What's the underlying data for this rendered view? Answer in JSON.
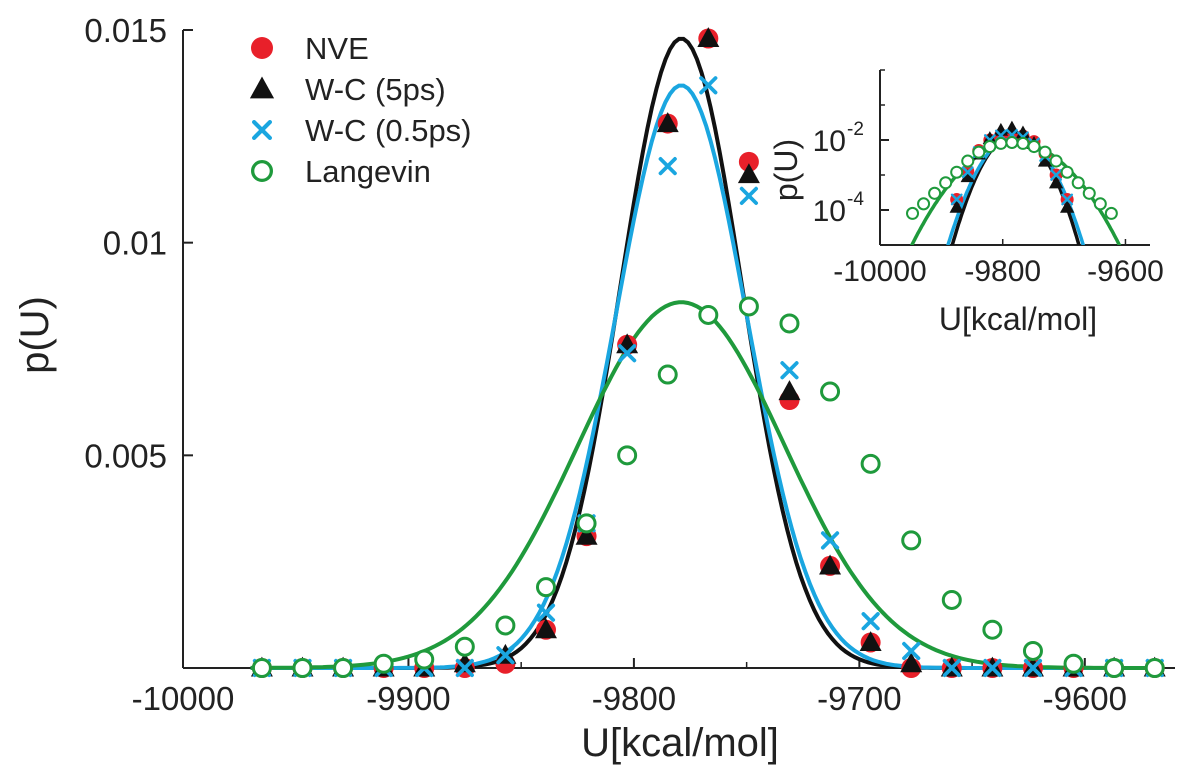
{
  "chart_data": [
    {
      "type": "line",
      "xlabel": "U[kcal/mol]",
      "ylabel": "p(U)",
      "xlim": [
        -10000,
        -9560
      ],
      "ylim": [
        0,
        0.015
      ],
      "x_ticks": [
        -10000,
        -9900,
        -9800,
        -9700,
        -9600
      ],
      "x_tick_labels": [
        "-10000",
        "-9900",
        "-9800",
        "-9700",
        "-9600"
      ],
      "y_ticks": [
        0.005,
        0.01,
        0.015
      ],
      "y_tick_labels": [
        "0.005",
        "0.01",
        "0.015"
      ],
      "legend_position": "top-left",
      "grid": false,
      "x": [
        -9965,
        -9947,
        -9929,
        -9911,
        -9893,
        -9875,
        -9857,
        -9839,
        -9821,
        -9803,
        -9785,
        -9767,
        -9749,
        -9731,
        -9713,
        -9695,
        -9677,
        -9659,
        -9641,
        -9623,
        -9605,
        -9587,
        -9569
      ],
      "series": [
        {
          "name": "NVE",
          "marker": "filled-circle",
          "color": "#e8202a",
          "values": [
            0,
            0,
            0,
            0,
            0,
            0,
            0.0001,
            0.0009,
            0.0031,
            0.0076,
            0.0128,
            0.0148,
            0.0119,
            0.0063,
            0.0024,
            0.0006,
            0,
            0,
            0,
            0,
            0,
            0,
            0
          ]
        },
        {
          "name": "W-C (5ps)",
          "marker": "filled-triangle",
          "color": "#111111",
          "values": [
            0,
            0,
            0,
            0,
            0,
            0.0001,
            0.0003,
            0.0009,
            0.0031,
            0.0076,
            0.0128,
            0.0148,
            0.0116,
            0.0065,
            0.0024,
            0.0006,
            0.0001,
            0,
            0,
            0,
            0,
            0,
            0
          ]
        },
        {
          "name": "W-C (0.5ps)",
          "marker": "cross",
          "color": "#1aa6e0",
          "values": [
            0,
            0,
            0,
            0,
            0,
            0,
            0.0003,
            0.0013,
            0.0034,
            0.0074,
            0.0118,
            0.0137,
            0.0111,
            0.007,
            0.003,
            0.0011,
            0.0004,
            0,
            0,
            0,
            0,
            0,
            0
          ]
        },
        {
          "name": "Langevin",
          "marker": "open-circle",
          "color": "#1f9a3c",
          "values": [
            0,
            0,
            0,
            0.0001,
            0.0002,
            0.0005,
            0.001,
            0.0019,
            0.0034,
            0.005,
            0.0069,
            0.0083,
            0.0085,
            0.0081,
            0.0065,
            0.0048,
            0.003,
            0.0016,
            0.0009,
            0.0004,
            0.0001,
            0,
            0
          ]
        }
      ],
      "fit_curves": [
        {
          "color": "#111111",
          "mean": -9779,
          "sigma": 27,
          "peak": 0.0148
        },
        {
          "color": "#1aa6e0",
          "mean": -9779,
          "sigma": 29,
          "peak": 0.0137
        },
        {
          "color": "#1f9a3c",
          "mean": -9779,
          "sigma": 46,
          "peak": 0.0086
        }
      ]
    },
    {
      "type": "line",
      "xlabel": "U[kcal/mol]",
      "ylabel": "p(U)",
      "xlim": [
        -10000,
        -9560
      ],
      "ylog": true,
      "ylim": [
        1e-05,
        1
      ],
      "x_ticks": [
        -10000,
        -9800,
        -9600
      ],
      "x_tick_labels": [
        "-10000",
        "-9800",
        "-9600"
      ],
      "y_ticks": [
        0.0001,
        0.01
      ],
      "y_tick_labels": [
        {
          "base": "10",
          "exp": "-4"
        },
        {
          "base": "10",
          "exp": "-2"
        }
      ],
      "grid": false,
      "x": [
        -9947,
        -9929,
        -9911,
        -9893,
        -9875,
        -9857,
        -9839,
        -9821,
        -9803,
        -9785,
        -9767,
        -9749,
        -9731,
        -9713,
        -9695,
        -9677,
        -9659,
        -9641,
        -9623
      ],
      "series": [
        {
          "name": "NVE",
          "marker": "filled-circle",
          "color": "#e8202a",
          "values": [
            null,
            null,
            null,
            null,
            0.0002,
            0.0013,
            0.005,
            0.01,
            0.014,
            0.0148,
            0.013,
            0.009,
            0.004,
            0.001,
            0.0002,
            null,
            null,
            null,
            null
          ]
        },
        {
          "name": "W-C (5ps)",
          "marker": "filled-triangle",
          "color": "#111111",
          "values": [
            null,
            null,
            null,
            null,
            0.00012,
            0.0009,
            0.004,
            0.011,
            0.019,
            0.022,
            0.016,
            0.008,
            0.0025,
            0.0006,
            0.00012,
            null,
            null,
            null,
            null
          ]
        },
        {
          "name": "W-C (0.5ps)",
          "marker": "cross",
          "color": "#1aa6e0",
          "values": [
            null,
            null,
            null,
            null,
            0.0002,
            0.0012,
            0.0045,
            0.01,
            0.0135,
            0.014,
            0.012,
            0.008,
            0.0035,
            0.001,
            0.0002,
            null,
            null,
            null,
            null
          ]
        },
        {
          "name": "Langevin",
          "marker": "open-circle",
          "color": "#1f9a3c",
          "values": [
            8e-05,
            0.00015,
            0.0003,
            0.0006,
            0.0012,
            0.0025,
            0.0045,
            0.0065,
            0.008,
            0.0085,
            0.008,
            0.0065,
            0.0045,
            0.0025,
            0.0012,
            0.0006,
            0.0003,
            0.00015,
            8e-05
          ]
        }
      ]
    }
  ]
}
